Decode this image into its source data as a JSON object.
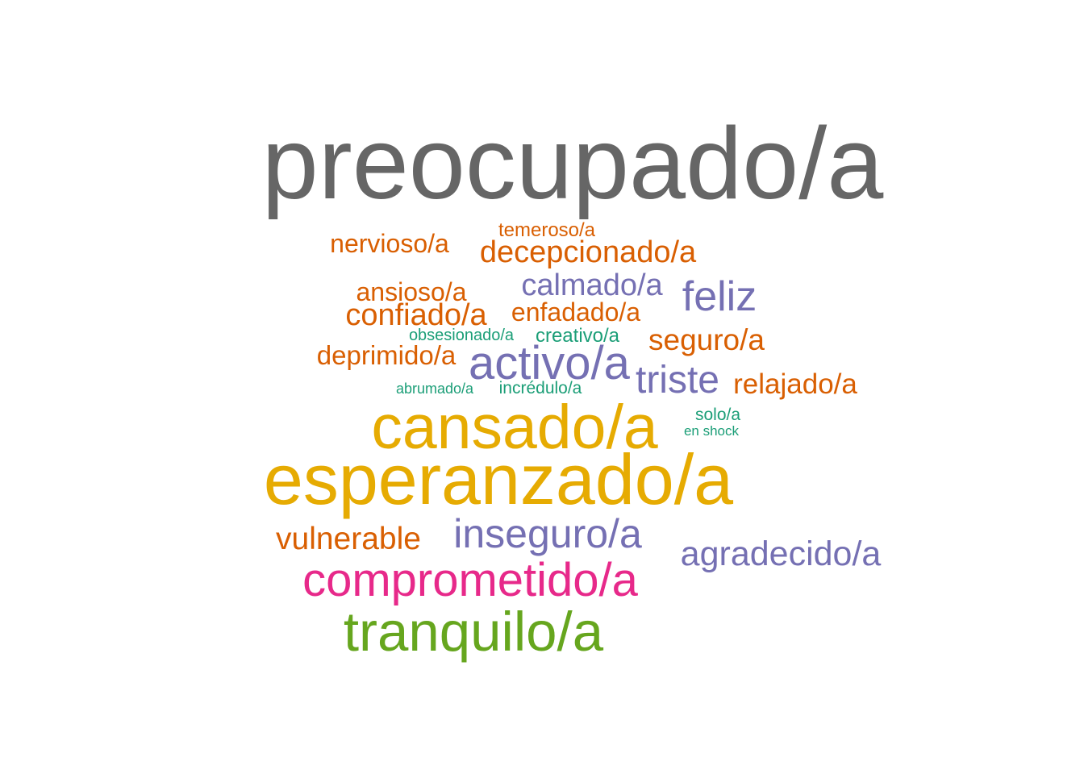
{
  "palette": {
    "gray": "#666666",
    "orange": "#d95f02",
    "purple": "#7570b3",
    "gold": "#e6ab02",
    "magenta": "#e7298a",
    "green": "#66a61e",
    "teal": "#1b9e77"
  },
  "words": [
    {
      "text": "preocupado/a",
      "color": "gray"
    },
    {
      "text": "temeroso/a",
      "color": "orange"
    },
    {
      "text": "nervioso/a",
      "color": "orange"
    },
    {
      "text": "decepcionado/a",
      "color": "orange"
    },
    {
      "text": "ansioso/a",
      "color": "orange"
    },
    {
      "text": "calmado/a",
      "color": "purple"
    },
    {
      "text": "feliz",
      "color": "purple"
    },
    {
      "text": "confiado/a",
      "color": "orange"
    },
    {
      "text": "enfadado/a",
      "color": "orange"
    },
    {
      "text": "obsesionado/a",
      "color": "teal"
    },
    {
      "text": "creativo/a",
      "color": "teal"
    },
    {
      "text": "seguro/a",
      "color": "orange"
    },
    {
      "text": "deprimido/a",
      "color": "orange"
    },
    {
      "text": "activo/a",
      "color": "purple"
    },
    {
      "text": "triste",
      "color": "purple"
    },
    {
      "text": "relajado/a",
      "color": "orange"
    },
    {
      "text": "abrumado/a",
      "color": "teal"
    },
    {
      "text": "incrédulo/a",
      "color": "teal"
    },
    {
      "text": "cansado/a",
      "color": "gold"
    },
    {
      "text": "solo/a",
      "color": "teal"
    },
    {
      "text": "en shock",
      "color": "teal"
    },
    {
      "text": "esperanzado/a",
      "color": "gold"
    },
    {
      "text": "vulnerable",
      "color": "orange"
    },
    {
      "text": "inseguro/a",
      "color": "purple"
    },
    {
      "text": "agradecido/a",
      "color": "purple"
    },
    {
      "text": "comprometido/a",
      "color": "magenta"
    },
    {
      "text": "tranquilo/a",
      "color": "green"
    }
  ]
}
